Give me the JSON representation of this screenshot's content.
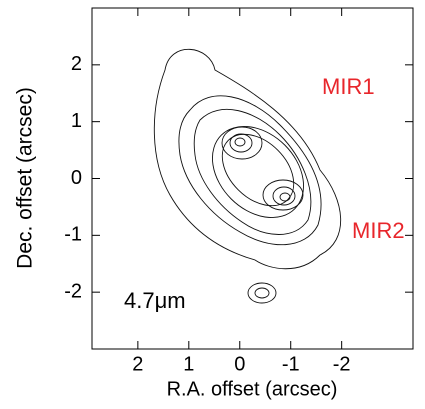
{
  "chart_data": {
    "type": "image",
    "xlabel": "R.A. offset (arcsec)",
    "ylabel": "Dec. offset (arcsec)",
    "xlim": [
      2.9,
      -3.4
    ],
    "ylim": [
      -3,
      3
    ],
    "xticks": [
      2,
      1,
      0,
      -1,
      -2
    ],
    "yticks": [
      2,
      1,
      0,
      -1,
      -2
    ],
    "annotations": [
      {
        "text": "MIR1",
        "color": "#e8262b"
      },
      {
        "text": "MIR2",
        "color": "#e8262b"
      },
      {
        "text": "4.7μm",
        "color": "#000000"
      }
    ]
  }
}
